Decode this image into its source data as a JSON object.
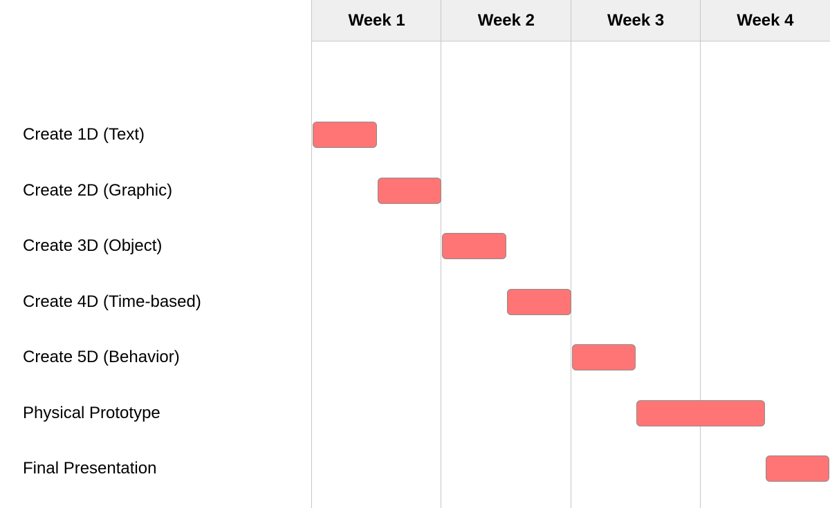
{
  "chart_data": {
    "type": "gantt",
    "title": "",
    "weeks": [
      "Week 1",
      "Week 2",
      "Week 3",
      "Week 4"
    ],
    "unit": "week",
    "xlim": [
      0,
      4
    ],
    "bar_color": "#ff7575",
    "header_color": "#efefef",
    "tasks": [
      {
        "label": "Create 1D (Text)",
        "start": 0.0,
        "end": 0.5
      },
      {
        "label": "Create 2D (Graphic)",
        "start": 0.5,
        "end": 1.0
      },
      {
        "label": "Create 3D (Object)",
        "start": 1.0,
        "end": 1.5
      },
      {
        "label": "Create 4D (Time-based)",
        "start": 1.5,
        "end": 2.0
      },
      {
        "label": "Create 5D (Behavior)",
        "start": 2.0,
        "end": 2.5
      },
      {
        "label": "Physical Prototype",
        "start": 2.5,
        "end": 3.5
      },
      {
        "label": "Final Presentation",
        "start": 3.5,
        "end": 4.0
      }
    ]
  }
}
